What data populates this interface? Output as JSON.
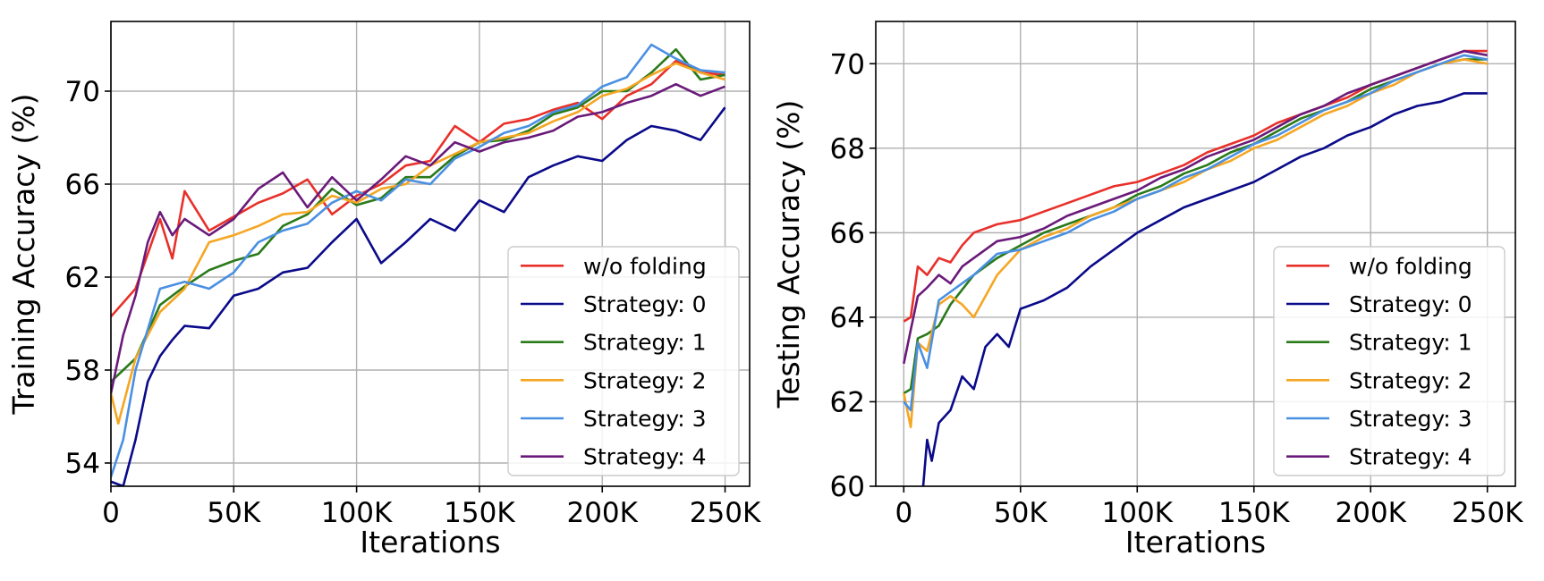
{
  "chart_data": [
    {
      "type": "line",
      "xlabel": "Iterations",
      "ylabel": "Training Accuracy (%)",
      "xlim": [
        0,
        260000
      ],
      "ylim": [
        53,
        73
      ],
      "xticks": [
        0,
        50000,
        100000,
        150000,
        200000,
        250000
      ],
      "xtick_labels": [
        "0",
        "50K",
        "100K",
        "150K",
        "200K",
        "250K"
      ],
      "yticks": [
        54,
        58,
        62,
        66,
        70
      ],
      "ytick_labels": [
        "54",
        "58",
        "62",
        "66",
        "70"
      ],
      "grid": true,
      "legend": "bottom-right",
      "series": [
        {
          "name": "w/o folding",
          "color": "#e8302a",
          "x": [
            0,
            10000,
            20000,
            25000,
            30000,
            40000,
            50000,
            60000,
            70000,
            80000,
            90000,
            100000,
            110000,
            120000,
            130000,
            140000,
            150000,
            160000,
            170000,
            180000,
            190000,
            200000,
            210000,
            220000,
            230000,
            240000,
            250000
          ],
          "y": [
            60.3,
            61.5,
            64.5,
            62.8,
            65.7,
            64.0,
            64.6,
            65.2,
            65.6,
            66.2,
            64.7,
            65.5,
            66.0,
            66.8,
            67.0,
            68.5,
            67.8,
            68.6,
            68.8,
            69.2,
            69.5,
            68.8,
            69.8,
            70.3,
            71.3,
            70.8,
            70.7
          ]
        },
        {
          "name": "Strategy: 0",
          "color": "#0a0a8a",
          "x": [
            0,
            5000,
            10000,
            15000,
            20000,
            25000,
            30000,
            40000,
            50000,
            60000,
            70000,
            80000,
            90000,
            100000,
            110000,
            120000,
            130000,
            140000,
            150000,
            160000,
            170000,
            180000,
            190000,
            200000,
            210000,
            220000,
            230000,
            240000,
            250000
          ],
          "y": [
            53.2,
            53.0,
            55.0,
            57.5,
            58.6,
            59.3,
            59.9,
            59.8,
            61.2,
            61.5,
            62.2,
            62.4,
            63.5,
            64.5,
            62.6,
            63.5,
            64.5,
            64.0,
            65.3,
            64.8,
            66.3,
            66.8,
            67.2,
            67.0,
            67.9,
            68.5,
            68.3,
            67.9,
            69.3
          ]
        },
        {
          "name": "Strategy: 1",
          "color": "#2a7a1a",
          "x": [
            0,
            10000,
            20000,
            30000,
            40000,
            50000,
            60000,
            70000,
            80000,
            90000,
            100000,
            110000,
            120000,
            130000,
            140000,
            150000,
            160000,
            170000,
            180000,
            190000,
            200000,
            210000,
            220000,
            230000,
            240000,
            250000
          ],
          "y": [
            57.5,
            58.5,
            60.8,
            61.6,
            62.3,
            62.7,
            63.0,
            64.2,
            64.7,
            65.8,
            65.1,
            65.4,
            66.3,
            66.3,
            67.2,
            67.8,
            67.9,
            68.3,
            69.0,
            69.3,
            70.0,
            70.0,
            70.8,
            71.8,
            70.5,
            70.7
          ]
        },
        {
          "name": "Strategy: 2",
          "color": "#f5a623",
          "x": [
            0,
            3000,
            10000,
            20000,
            30000,
            40000,
            50000,
            60000,
            70000,
            80000,
            90000,
            100000,
            110000,
            120000,
            130000,
            140000,
            150000,
            160000,
            170000,
            180000,
            190000,
            200000,
            210000,
            220000,
            230000,
            240000,
            250000
          ],
          "y": [
            57.0,
            55.7,
            58.5,
            60.5,
            61.5,
            63.5,
            63.8,
            64.2,
            64.7,
            64.8,
            65.5,
            65.2,
            65.8,
            66.0,
            66.8,
            67.3,
            67.8,
            68.0,
            68.2,
            68.7,
            69.1,
            69.8,
            70.1,
            70.7,
            71.2,
            70.8,
            70.5
          ]
        },
        {
          "name": "Strategy: 3",
          "color": "#4a90e2",
          "x": [
            0,
            5000,
            10000,
            20000,
            30000,
            40000,
            50000,
            60000,
            70000,
            80000,
            90000,
            100000,
            110000,
            120000,
            130000,
            140000,
            150000,
            160000,
            170000,
            180000,
            190000,
            200000,
            210000,
            220000,
            230000,
            240000,
            250000
          ],
          "y": [
            53.4,
            55.0,
            58.0,
            61.5,
            61.8,
            61.5,
            62.2,
            63.5,
            64.0,
            64.3,
            65.2,
            65.7,
            65.3,
            66.2,
            66.0,
            67.1,
            67.6,
            68.2,
            68.5,
            69.1,
            69.4,
            70.2,
            70.6,
            72.0,
            71.4,
            70.9,
            70.8
          ]
        },
        {
          "name": "Strategy: 4",
          "color": "#6a1a7a",
          "x": [
            0,
            5000,
            10000,
            15000,
            20000,
            25000,
            30000,
            40000,
            50000,
            60000,
            70000,
            80000,
            90000,
            100000,
            110000,
            120000,
            130000,
            140000,
            150000,
            160000,
            170000,
            180000,
            190000,
            200000,
            210000,
            220000,
            230000,
            240000,
            250000
          ],
          "y": [
            57.0,
            59.5,
            61.2,
            63.5,
            64.8,
            63.8,
            64.5,
            63.8,
            64.5,
            65.8,
            66.5,
            65.0,
            66.3,
            65.3,
            66.2,
            67.2,
            66.8,
            67.8,
            67.4,
            67.8,
            68.0,
            68.3,
            68.9,
            69.1,
            69.5,
            69.8,
            70.3,
            69.8,
            70.2
          ]
        }
      ]
    },
    {
      "type": "line",
      "xlabel": "Iterations",
      "ylabel": "Testing Accuracy (%)",
      "xlim": [
        -12000,
        262000
      ],
      "ylim": [
        60,
        71
      ],
      "xticks": [
        0,
        50000,
        100000,
        150000,
        200000,
        250000
      ],
      "xtick_labels": [
        "0",
        "50K",
        "100K",
        "150K",
        "200K",
        "250K"
      ],
      "yticks": [
        60,
        62,
        64,
        66,
        68,
        70
      ],
      "ytick_labels": [
        "60",
        "62",
        "64",
        "66",
        "68",
        "70"
      ],
      "grid": true,
      "legend": "bottom-right",
      "series": [
        {
          "name": "w/o folding",
          "color": "#e8302a",
          "x": [
            0,
            3000,
            6000,
            10000,
            15000,
            20000,
            25000,
            30000,
            40000,
            50000,
            60000,
            70000,
            80000,
            90000,
            100000,
            110000,
            120000,
            130000,
            140000,
            150000,
            160000,
            170000,
            180000,
            190000,
            200000,
            210000,
            220000,
            230000,
            240000,
            250000
          ],
          "y": [
            63.9,
            64.0,
            65.2,
            65.0,
            65.4,
            65.3,
            65.7,
            66.0,
            66.2,
            66.3,
            66.5,
            66.7,
            66.9,
            67.1,
            67.2,
            67.4,
            67.6,
            67.9,
            68.1,
            68.3,
            68.6,
            68.8,
            69.0,
            69.2,
            69.5,
            69.7,
            69.9,
            70.1,
            70.3,
            70.3
          ]
        },
        {
          "name": "Strategy: 0",
          "color": "#0a0a8a",
          "x": [
            8000,
            10000,
            12000,
            15000,
            20000,
            25000,
            30000,
            35000,
            40000,
            45000,
            50000,
            60000,
            70000,
            80000,
            90000,
            100000,
            110000,
            120000,
            130000,
            140000,
            150000,
            160000,
            170000,
            180000,
            190000,
            200000,
            210000,
            220000,
            230000,
            240000,
            245000,
            250000
          ],
          "y": [
            59.8,
            61.1,
            60.6,
            61.5,
            61.8,
            62.6,
            62.3,
            63.3,
            63.6,
            63.3,
            64.2,
            64.4,
            64.7,
            65.2,
            65.6,
            66.0,
            66.3,
            66.6,
            66.8,
            67.0,
            67.2,
            67.5,
            67.8,
            68.0,
            68.3,
            68.5,
            68.8,
            69.0,
            69.1,
            69.3,
            69.3,
            69.3
          ]
        },
        {
          "name": "Strategy: 1",
          "color": "#2a7a1a",
          "x": [
            0,
            3000,
            6000,
            10000,
            15000,
            20000,
            30000,
            40000,
            50000,
            60000,
            70000,
            80000,
            90000,
            100000,
            110000,
            120000,
            130000,
            140000,
            150000,
            160000,
            170000,
            180000,
            190000,
            200000,
            210000,
            220000,
            230000,
            240000,
            250000
          ],
          "y": [
            62.2,
            62.3,
            63.5,
            63.6,
            63.8,
            64.3,
            65.0,
            65.4,
            65.7,
            66.0,
            66.2,
            66.4,
            66.6,
            66.9,
            67.1,
            67.4,
            67.6,
            67.9,
            68.1,
            68.4,
            68.7,
            68.9,
            69.1,
            69.4,
            69.6,
            69.8,
            70.0,
            70.1,
            70.1
          ]
        },
        {
          "name": "Strategy: 2",
          "color": "#f5a623",
          "x": [
            0,
            3000,
            6000,
            10000,
            15000,
            20000,
            25000,
            30000,
            40000,
            50000,
            60000,
            70000,
            80000,
            90000,
            100000,
            110000,
            120000,
            130000,
            140000,
            150000,
            160000,
            170000,
            180000,
            190000,
            200000,
            210000,
            220000,
            230000,
            240000,
            250000
          ],
          "y": [
            62.2,
            61.4,
            63.4,
            63.2,
            64.3,
            64.5,
            64.3,
            64.0,
            65.0,
            65.6,
            65.9,
            66.1,
            66.4,
            66.6,
            66.8,
            67.0,
            67.2,
            67.5,
            67.7,
            68.0,
            68.2,
            68.5,
            68.8,
            69.0,
            69.3,
            69.5,
            69.8,
            70.0,
            70.1,
            70.0
          ]
        },
        {
          "name": "Strategy: 3",
          "color": "#4a90e2",
          "x": [
            0,
            3000,
            6000,
            10000,
            15000,
            20000,
            30000,
            40000,
            50000,
            60000,
            70000,
            80000,
            90000,
            100000,
            110000,
            120000,
            130000,
            140000,
            150000,
            160000,
            170000,
            180000,
            190000,
            200000,
            210000,
            220000,
            230000,
            240000,
            250000
          ],
          "y": [
            62.0,
            61.8,
            63.4,
            62.8,
            64.4,
            64.6,
            65.0,
            65.5,
            65.6,
            65.8,
            66.0,
            66.3,
            66.5,
            66.8,
            67.0,
            67.3,
            67.5,
            67.8,
            68.1,
            68.3,
            68.6,
            68.9,
            69.1,
            69.3,
            69.6,
            69.8,
            70.0,
            70.2,
            70.1
          ]
        },
        {
          "name": "Strategy: 4",
          "color": "#6a1a7a",
          "x": [
            0,
            3000,
            6000,
            10000,
            15000,
            20000,
            25000,
            30000,
            40000,
            50000,
            60000,
            70000,
            80000,
            90000,
            100000,
            110000,
            120000,
            130000,
            140000,
            150000,
            160000,
            170000,
            180000,
            190000,
            200000,
            210000,
            220000,
            230000,
            240000,
            250000
          ],
          "y": [
            62.9,
            63.7,
            64.5,
            64.7,
            65.0,
            64.8,
            65.2,
            65.4,
            65.8,
            65.9,
            66.1,
            66.4,
            66.6,
            66.8,
            67.0,
            67.3,
            67.5,
            67.8,
            68.0,
            68.2,
            68.5,
            68.8,
            69.0,
            69.3,
            69.5,
            69.7,
            69.9,
            70.1,
            70.3,
            70.2
          ]
        }
      ]
    }
  ]
}
